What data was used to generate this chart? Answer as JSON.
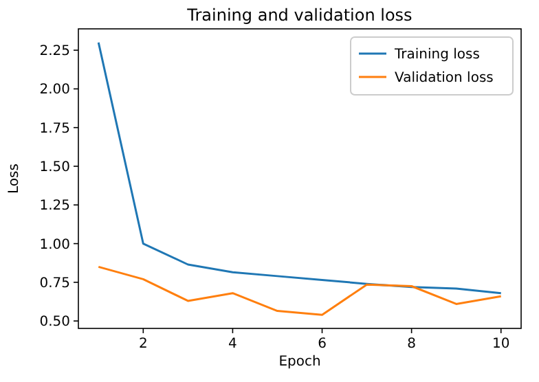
{
  "chart_data": {
    "type": "line",
    "title": "Training and validation loss",
    "xlabel": "Epoch",
    "ylabel": "Loss",
    "x": [
      1,
      2,
      3,
      4,
      5,
      6,
      7,
      8,
      9,
      10
    ],
    "series": [
      {
        "name": "Training loss",
        "color": "#1f77b4",
        "values": [
          2.3,
          1.0,
          0.865,
          0.815,
          0.79,
          0.765,
          0.74,
          0.72,
          0.71,
          0.68
        ]
      },
      {
        "name": "Validation loss",
        "color": "#ff7f0e",
        "values": [
          0.85,
          0.77,
          0.63,
          0.68,
          0.565,
          0.54,
          0.735,
          0.725,
          0.61,
          0.66
        ]
      }
    ],
    "xlim": [
      0.55,
      10.45
    ],
    "xticks": [
      2,
      4,
      6,
      8,
      10
    ],
    "ylim": [
      0.452,
      2.388
    ],
    "yticks": [
      {
        "value": 0.5,
        "label": "0.50"
      },
      {
        "value": 0.75,
        "label": "0.75"
      },
      {
        "value": 1.0,
        "label": "1.00"
      },
      {
        "value": 1.25,
        "label": "1.25"
      },
      {
        "value": 1.5,
        "label": "1.50"
      },
      {
        "value": 1.75,
        "label": "1.75"
      },
      {
        "value": 2.0,
        "label": "2.00"
      },
      {
        "value": 2.25,
        "label": "2.25"
      }
    ],
    "legend": "top right",
    "grid": false,
    "marker": "none",
    "line_style": "solid"
  }
}
